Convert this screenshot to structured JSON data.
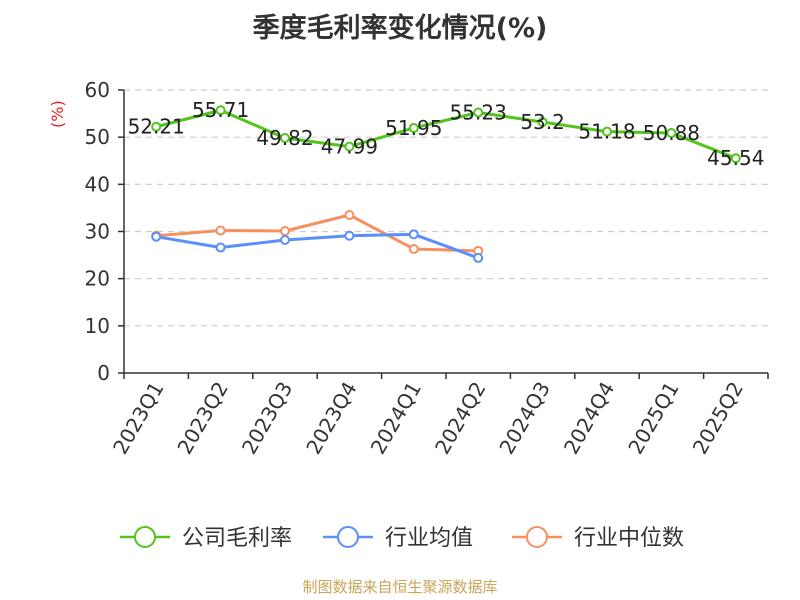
{
  "chart_data": {
    "type": "line",
    "title": "季度毛利率变化情况(%)",
    "ylabel": "(%)",
    "ylim": [
      0,
      60
    ],
    "yticks": [
      0,
      10,
      20,
      30,
      40,
      50,
      60
    ],
    "grid": true,
    "legend_position": "bottom",
    "categories": [
      "2023Q1",
      "2023Q2",
      "2023Q3",
      "2023Q4",
      "2024Q1",
      "2024Q2",
      "2024Q3",
      "2024Q4",
      "2025Q1",
      "2025Q2"
    ],
    "series": [
      {
        "name": "公司毛利率",
        "color": "#52c41a",
        "labels": true,
        "values": [
          52.21,
          55.71,
          49.82,
          47.99,
          51.95,
          55.23,
          53.2,
          51.18,
          50.88,
          45.54
        ]
      },
      {
        "name": "行业均值",
        "color": "#5b8ff9",
        "labels": false,
        "values": [
          28.9,
          26.6,
          28.2,
          29.1,
          29.4,
          24.4,
          null,
          null,
          null,
          null
        ]
      },
      {
        "name": "行业中位数",
        "color": "#f6905f",
        "labels": false,
        "values": [
          29.1,
          30.2,
          30.1,
          33.5,
          26.3,
          25.9,
          null,
          null,
          null,
          null
        ]
      }
    ]
  },
  "source": "制图数据来自恒生聚源数据库"
}
